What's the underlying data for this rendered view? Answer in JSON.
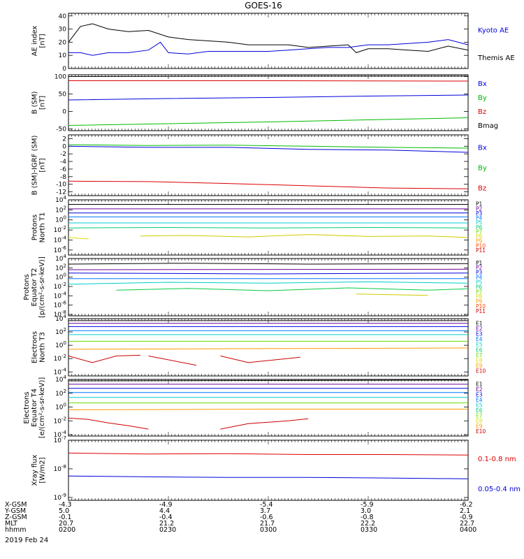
{
  "title": "GOES-16",
  "date_label": "2019 Feb 24",
  "chart_data": [
    {
      "type": "line",
      "ylabel": [
        "AE index",
        "[nT]"
      ],
      "yticks": [
        40,
        30,
        20,
        10,
        0
      ],
      "ylim": [
        0,
        42
      ],
      "log": false,
      "legend": [
        {
          "label": "Kyoto AE",
          "color": "#0000dd"
        },
        {
          "label": "Themis AE",
          "color": "#000000"
        }
      ],
      "series": [
        {
          "name": "Themis AE",
          "color": "#000000",
          "x": [
            0,
            0.03,
            0.06,
            0.1,
            0.15,
            0.2,
            0.25,
            0.3,
            0.35,
            0.4,
            0.45,
            0.5,
            0.55,
            0.6,
            0.65,
            0.7,
            0.72,
            0.75,
            0.8,
            0.85,
            0.9,
            0.95,
            1.0
          ],
          "y": [
            20,
            32,
            34,
            30,
            28,
            29,
            24,
            22,
            21,
            20,
            18,
            18,
            18,
            16,
            17,
            18,
            12,
            15,
            15,
            14,
            13,
            17,
            14
          ]
        },
        {
          "name": "Kyoto AE",
          "color": "#0000dd",
          "x": [
            0,
            0.03,
            0.06,
            0.1,
            0.15,
            0.2,
            0.23,
            0.25,
            0.3,
            0.35,
            0.4,
            0.45,
            0.5,
            0.55,
            0.6,
            0.65,
            0.7,
            0.75,
            0.8,
            0.85,
            0.9,
            0.95,
            1.0
          ],
          "y": [
            12,
            12,
            10,
            12,
            12,
            14,
            20,
            12,
            11,
            13,
            13,
            13,
            13,
            14,
            15,
            16,
            16,
            18,
            18,
            19,
            20,
            22,
            18
          ]
        }
      ]
    },
    {
      "type": "line",
      "ylabel": [
        "B (SM)",
        "[nT]"
      ],
      "yticks": [
        100,
        50,
        0,
        -50
      ],
      "ylim": [
        -55,
        105
      ],
      "log": false,
      "legend": [
        {
          "label": "Bx",
          "color": "#0000dd"
        },
        {
          "label": "By",
          "color": "#00bb00"
        },
        {
          "label": "Bz",
          "color": "#dd0000"
        },
        {
          "label": "Bmag",
          "color": "#000000"
        }
      ],
      "series": [
        {
          "name": "Bmag",
          "color": "#000000",
          "x": [
            0,
            0.5,
            1
          ],
          "y": [
            100,
            101,
            101
          ]
        },
        {
          "name": "Bz",
          "color": "#dd0000",
          "x": [
            0,
            0.5,
            1
          ],
          "y": [
            88,
            88,
            87
          ]
        },
        {
          "name": "Bx",
          "color": "#0000dd",
          "x": [
            0,
            0.25,
            0.5,
            0.75,
            1
          ],
          "y": [
            33,
            37,
            40,
            44,
            47
          ]
        },
        {
          "name": "By",
          "color": "#00bb00",
          "x": [
            0,
            0.25,
            0.5,
            0.75,
            1
          ],
          "y": [
            -40,
            -35,
            -30,
            -24,
            -18
          ]
        }
      ]
    },
    {
      "type": "line",
      "ylabel": [
        "B (SM)-IGRF (SM)",
        "[nT]"
      ],
      "yticks": [
        2,
        0,
        -2,
        -4,
        -6,
        -8,
        -10,
        -12
      ],
      "ylim": [
        -13,
        3
      ],
      "log": false,
      "legend": [
        {
          "label": "Bx",
          "color": "#0000dd"
        },
        {
          "label": "By",
          "color": "#00bb00"
        },
        {
          "label": "Bz",
          "color": "#dd0000"
        }
      ],
      "series": [
        {
          "name": "By",
          "color": "#00bb00",
          "x": [
            0,
            0.2,
            0.4,
            0.6,
            0.8,
            1
          ],
          "y": [
            0.4,
            0.2,
            0.3,
            0,
            -0.3,
            -0.5
          ]
        },
        {
          "name": "Bx",
          "color": "#0000dd",
          "x": [
            0,
            0.2,
            0.4,
            0.6,
            0.8,
            1
          ],
          "y": [
            0,
            -0.3,
            -0.3,
            -0.8,
            -1,
            -1.6
          ]
        },
        {
          "name": "Bz",
          "color": "#dd0000",
          "x": [
            0,
            0.2,
            0.4,
            0.6,
            0.8,
            1
          ],
          "y": [
            -9.2,
            -9.3,
            -9.8,
            -10.4,
            -11,
            -11.2
          ]
        }
      ]
    },
    {
      "type": "line",
      "ylabel": [
        "Protons",
        "North T1"
      ],
      "yticks": [
        "10^4",
        "10^2",
        "10^0",
        "10^-2",
        "10^-4",
        "10^-6"
      ],
      "ylim": [
        -7,
        4
      ],
      "log": true,
      "legend": [
        {
          "label": "P1",
          "color": "#000000"
        },
        {
          "label": "P2",
          "color": "#6a0099"
        },
        {
          "label": "P3",
          "color": "#0000dd"
        },
        {
          "label": "P4",
          "color": "#0077ff"
        },
        {
          "label": "P5",
          "color": "#00cccc"
        },
        {
          "label": "P6",
          "color": "#00cc77"
        },
        {
          "label": "P7",
          "color": "#66dd00"
        },
        {
          "label": "P8",
          "color": "#dddd00"
        },
        {
          "label": "P9",
          "color": "#ff9900"
        },
        {
          "label": "P10",
          "color": "#ff4400"
        },
        {
          "label": "P11",
          "color": "#cc0000"
        }
      ],
      "series": [
        {
          "name": "P1",
          "color": "#000000",
          "x": [
            0,
            1
          ],
          "y": [
            3.1,
            3.1
          ]
        },
        {
          "name": "P2",
          "color": "#6a0099",
          "x": [
            0,
            1
          ],
          "y": [
            2.2,
            2.2
          ]
        },
        {
          "name": "P3",
          "color": "#0000dd",
          "x": [
            0,
            1
          ],
          "y": [
            1.4,
            1.4
          ]
        },
        {
          "name": "P4",
          "color": "#0077ff",
          "x": [
            0,
            1
          ],
          "y": [
            0.6,
            0.6
          ]
        },
        {
          "name": "P5",
          "color": "#00cccc",
          "x": [
            0,
            1
          ],
          "y": [
            -0.6,
            -0.6
          ]
        },
        {
          "name": "P6",
          "color": "#00cc77",
          "x": [
            0,
            0.25,
            0.5,
            0.75,
            1
          ],
          "y": [
            -1.6,
            -1.5,
            -1.6,
            -1.5,
            -1.6
          ]
        },
        {
          "name": "P7",
          "color": "#cccc00",
          "x": [
            0.18,
            0.3,
            0.45,
            0.6,
            0.75,
            0.9,
            1.0
          ],
          "y": [
            -3.2,
            -3.1,
            -3.4,
            -2.9,
            -3.3,
            -3.2,
            -3.5
          ]
        },
        {
          "name": "P8",
          "color": "#dddd00",
          "x": [
            0,
            0.05
          ],
          "y": [
            -3.5,
            -3.8
          ]
        }
      ]
    },
    {
      "type": "line",
      "ylabel": [
        "Protons",
        "Equator T2",
        "[p/(cm²-s-sr-keV)]"
      ],
      "yticks": [
        "10^4",
        "10^2",
        "10^0",
        "10^-2",
        "10^-4",
        "10^-6",
        "10^-8"
      ],
      "ylim": [
        -8.3,
        4
      ],
      "log": true,
      "legend": [
        {
          "label": "P1",
          "color": "#000000"
        },
        {
          "label": "P2",
          "color": "#6a0099"
        },
        {
          "label": "P3",
          "color": "#0000dd"
        },
        {
          "label": "P4",
          "color": "#0077ff"
        },
        {
          "label": "P5",
          "color": "#00cccc"
        },
        {
          "label": "P6",
          "color": "#00cc77"
        },
        {
          "label": "P7",
          "color": "#66dd00"
        },
        {
          "label": "P8",
          "color": "#dddd00"
        },
        {
          "label": "P9",
          "color": "#ff9900"
        },
        {
          "label": "P10",
          "color": "#ff4400"
        },
        {
          "label": "P11",
          "color": "#cc0000"
        }
      ],
      "series": [
        {
          "name": "P1",
          "color": "#000000",
          "x": [
            0,
            0.3,
            0.6,
            1
          ],
          "y": [
            2.8,
            3,
            2.8,
            2.9
          ]
        },
        {
          "name": "P2",
          "color": "#6a0099",
          "x": [
            0,
            1
          ],
          "y": [
            1.6,
            1.7
          ]
        },
        {
          "name": "P3",
          "color": "#0000dd",
          "x": [
            0,
            0.5,
            1
          ],
          "y": [
            0.9,
            0.7,
            0.9
          ]
        },
        {
          "name": "P4",
          "color": "#0077ff",
          "x": [
            0,
            1
          ],
          "y": [
            -0.3,
            -0.3
          ]
        },
        {
          "name": "P5",
          "color": "#00cccc",
          "x": [
            0,
            0.25,
            0.5,
            0.75,
            1
          ],
          "y": [
            -1.5,
            -1.1,
            -1.3,
            -1.0,
            -1.3
          ]
        },
        {
          "name": "P6",
          "color": "#00cc44",
          "x": [
            0.12,
            0.3,
            0.5,
            0.7,
            0.9,
            1
          ],
          "y": [
            -2.8,
            -2.4,
            -2.9,
            -2.3,
            -2.8,
            -2.5
          ]
        },
        {
          "name": "P7",
          "color": "#cccc00",
          "x": [
            0.72,
            0.9
          ],
          "y": [
            -3.6,
            -3.9
          ]
        }
      ]
    },
    {
      "type": "line",
      "ylabel": [
        "Electrons",
        "North T3"
      ],
      "yticks": [
        "10^4",
        "10^2",
        "10^0",
        "10^-2",
        "10^-4"
      ],
      "ylim": [
        -4.6,
        4
      ],
      "log": true,
      "legend": [
        {
          "label": "E1",
          "color": "#000000"
        },
        {
          "label": "E2",
          "color": "#6a0099"
        },
        {
          "label": "E3",
          "color": "#0000dd"
        },
        {
          "label": "E4",
          "color": "#0077ff"
        },
        {
          "label": "E5",
          "color": "#00cccc"
        },
        {
          "label": "E6",
          "color": "#00cc77"
        },
        {
          "label": "E7",
          "color": "#66dd00"
        },
        {
          "label": "E8",
          "color": "#dddd00"
        },
        {
          "label": "E9",
          "color": "#ff9900"
        },
        {
          "label": "E10",
          "color": "#cc0000"
        }
      ],
      "series": [
        {
          "name": "E1",
          "color": "#000000",
          "x": [
            0,
            1
          ],
          "y": [
            3.7,
            3.7
          ]
        },
        {
          "name": "E2",
          "color": "#6a0099",
          "x": [
            0,
            1
          ],
          "y": [
            3.3,
            3.3
          ]
        },
        {
          "name": "E3",
          "color": "#0000dd",
          "x": [
            0,
            1
          ],
          "y": [
            2.8,
            2.8
          ]
        },
        {
          "name": "E4",
          "color": "#0077ff",
          "x": [
            0,
            1
          ],
          "y": [
            2.2,
            2.2
          ]
        },
        {
          "name": "E5",
          "color": "#00cccc",
          "x": [
            0,
            1
          ],
          "y": [
            1.6,
            1.6
          ]
        },
        {
          "name": "E6",
          "color": "#66dd00",
          "x": [
            0,
            1
          ],
          "y": [
            0.6,
            0.6
          ]
        },
        {
          "name": "E7",
          "color": "#ff9900",
          "x": [
            0,
            0.5,
            1
          ],
          "y": [
            -0.6,
            -0.5,
            -0.4
          ]
        },
        {
          "name": "E8",
          "color": "#cc0000",
          "x": [
            0,
            0.06,
            0.12,
            0.18
          ],
          "y": [
            -1.6,
            -2.6,
            -1.6,
            -1.5
          ]
        },
        {
          "name": "E9",
          "color": "#cc0000",
          "x": [
            0.2,
            0.32
          ],
          "y": [
            -1.6,
            -3
          ]
        },
        {
          "name": "E10",
          "color": "#cc0000",
          "x": [
            0.38,
            0.45,
            0.58
          ],
          "y": [
            -1.6,
            -2.6,
            -1.8
          ]
        }
      ]
    },
    {
      "type": "line",
      "ylabel": [
        "Electrons",
        "Equator T4",
        "[e/(cm²-s-sr-keV)]"
      ],
      "yticks": [
        "10^4",
        "10^2",
        "10^0",
        "10^-2",
        "10^-4"
      ],
      "ylim": [
        -4.2,
        4
      ],
      "log": true,
      "legend": [
        {
          "label": "E1",
          "color": "#000000"
        },
        {
          "label": "E2",
          "color": "#6a0099"
        },
        {
          "label": "E3",
          "color": "#0000dd"
        },
        {
          "label": "E4",
          "color": "#0077ff"
        },
        {
          "label": "E5",
          "color": "#00cccc"
        },
        {
          "label": "E6",
          "color": "#00cc77"
        },
        {
          "label": "E7",
          "color": "#66dd00"
        },
        {
          "label": "E8",
          "color": "#dddd00"
        },
        {
          "label": "E9",
          "color": "#ff9900"
        },
        {
          "label": "E10",
          "color": "#cc0000"
        }
      ],
      "series": [
        {
          "name": "E1",
          "color": "#000000",
          "x": [
            0,
            1
          ],
          "y": [
            3.8,
            3.9
          ]
        },
        {
          "name": "E2",
          "color": "#6a0099",
          "x": [
            0,
            1
          ],
          "y": [
            3.3,
            3.3
          ]
        },
        {
          "name": "E3",
          "color": "#0000dd",
          "x": [
            0,
            1
          ],
          "y": [
            2.7,
            2.7
          ]
        },
        {
          "name": "E4",
          "color": "#0077ff",
          "x": [
            0,
            1
          ],
          "y": [
            2.1,
            2.1
          ]
        },
        {
          "name": "E5",
          "color": "#00cccc",
          "x": [
            0,
            1
          ],
          "y": [
            1.4,
            1.4
          ]
        },
        {
          "name": "E6",
          "color": "#66dd00",
          "x": [
            0,
            1
          ],
          "y": [
            0.6,
            0.6
          ]
        },
        {
          "name": "E7",
          "color": "#ff9900",
          "x": [
            0,
            0.5,
            1
          ],
          "y": [
            -0.4,
            -0.3,
            -0.3
          ]
        },
        {
          "name": "E8",
          "color": "#cc0000",
          "x": [
            0,
            0.05,
            0.1,
            0.15,
            0.2
          ],
          "y": [
            -1.6,
            -1.8,
            -2.3,
            -2.7,
            -3.2
          ]
        },
        {
          "name": "E9",
          "color": "#cc0000",
          "x": [
            0.38,
            0.45,
            0.55,
            0.6
          ],
          "y": [
            -3.2,
            -2.4,
            -2,
            -1.7
          ]
        }
      ]
    },
    {
      "type": "line",
      "ylabel": [
        "Xray flux",
        "[W/m2]"
      ],
      "yticks": [
        "10^-7",
        "10^-8",
        "10^-9"
      ],
      "ylim": [
        -9.1,
        -7
      ],
      "log": true,
      "legend": [
        {
          "label": "0.1-0.8 nm",
          "color": "#dd0000"
        },
        {
          "label": "0.05-0.4 nm",
          "color": "#0000dd"
        }
      ],
      "series": [
        {
          "name": "0.1-0.8 nm",
          "color": "#dd0000",
          "x": [
            0,
            0.2,
            0.4,
            0.6,
            0.8,
            1
          ],
          "y": [
            -7.45,
            -7.48,
            -7.47,
            -7.5,
            -7.5,
            -7.52
          ]
        },
        {
          "name": "0.05-0.4 nm",
          "color": "#0000dd",
          "x": [
            0,
            0.2,
            0.4,
            0.6,
            0.8,
            1
          ],
          "y": [
            -8.25,
            -8.28,
            -8.3,
            -8.3,
            -8.32,
            -8.35
          ]
        }
      ]
    }
  ],
  "xaxis": {
    "row_labels": [
      "X-GSM",
      "Y-GSM",
      "Z-GSM",
      "MLT",
      "hhmm"
    ],
    "columns": [
      {
        "values": [
          "-4.3",
          "5.0",
          "-0.1",
          "20.7",
          "0200"
        ]
      },
      {
        "values": [
          "-4.9",
          "4.4",
          "-0.4",
          "21.2",
          "0230"
        ]
      },
      {
        "values": [
          "-5.4",
          "3.7",
          "-0.6",
          "21.7",
          "0300"
        ]
      },
      {
        "values": [
          "-5.9",
          "3.0",
          "-0.8",
          "22.2",
          "0330"
        ]
      },
      {
        "values": [
          "-6.2",
          "2.1",
          "-0.9",
          "22.7",
          "0400"
        ]
      }
    ]
  }
}
